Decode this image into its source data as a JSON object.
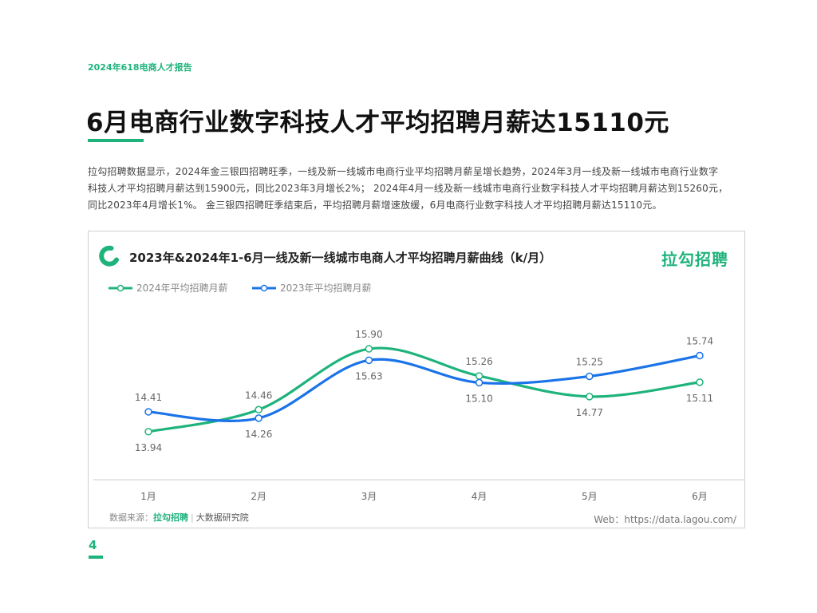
{
  "header": {
    "report_tag": "2024年618电商人才报告",
    "title": "6月电商行业数字科技人才平均招聘月薪达15110元"
  },
  "intro": {
    "line1": "拉勾招聘数据显示，2024年金三银四招聘旺季，一线及新一线城市电商行业平均招聘月薪呈增长趋势，2024年3月一线及新一线城市电商行业数字",
    "line2": "科技人才平均招聘月薪达到15900元，同比2023年3月增长2%； 2024年4月一线及新一线城市电商行业数字科技人才平均招聘月薪达到15260元，",
    "line3": "同比2023年4月增长1%。 金三银四招聘旺季结束后，平均招聘月薪增速放缓，6月电商行业数字科技人才平均招聘月薪达15110元。"
  },
  "card": {
    "brand": "拉勾招聘",
    "source_prefix": "数据来源：",
    "source_brand": "拉勾招聘",
    "source_sep": "|",
    "source_org": "大数据研究院",
    "web": "Web：https://data.lagou.com/"
  },
  "colors": {
    "green": "#1fb37c",
    "blue": "#1a73e8",
    "axis": "#cccccc",
    "label": "#666666"
  },
  "chart_data": {
    "type": "line",
    "title": "2023年&2024年1-6月一线及新一线城市电商人才平均招聘月薪曲线（k/月）",
    "categories": [
      "1月",
      "2月",
      "3月",
      "4月",
      "5月",
      "6月"
    ],
    "series": [
      {
        "name": "2024年平均招聘月薪",
        "color": "#1fb37c",
        "values": [
          13.94,
          14.46,
          15.9,
          15.26,
          14.77,
          15.11
        ],
        "labels": [
          "13.94",
          "14.46",
          "15.90",
          "15.26",
          "14.77",
          "15.11"
        ]
      },
      {
        "name": "2023年平均招聘月薪",
        "color": "#1a73e8",
        "values": [
          14.41,
          14.26,
          15.63,
          15.1,
          15.25,
          15.74
        ],
        "labels": [
          "14.41",
          "14.26",
          "15.63",
          "15.10",
          "15.25",
          "15.74"
        ]
      }
    ],
    "ylim": [
      13.2,
      16.6
    ],
    "xlabel": "",
    "ylabel": "",
    "grid": false,
    "legend": "top-left"
  },
  "page": {
    "number": "4"
  }
}
